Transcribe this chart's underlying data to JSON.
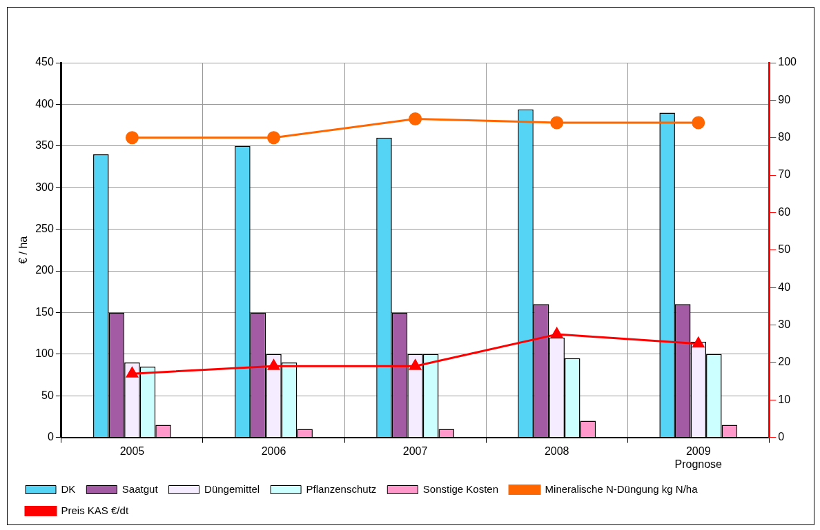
{
  "chart_data": {
    "type": "bar",
    "ylabel": "€ / ha",
    "categories": [
      "2005",
      "2006",
      "2007",
      "2008",
      "2009\nPrognose"
    ],
    "series": [
      {
        "name": "DK",
        "color": "#55d4f5",
        "values": [
          340,
          350,
          360,
          394,
          390
        ]
      },
      {
        "name": "Saatgut",
        "color": "#a35ca3",
        "values": [
          150,
          150,
          150,
          160,
          160
        ]
      },
      {
        "name": "Düngemittel",
        "color": "#f6ecff",
        "values": [
          90,
          100,
          100,
          120,
          115
        ]
      },
      {
        "name": "Pflanzenschutz",
        "color": "#ccffff",
        "values": [
          85,
          90,
          100,
          95,
          100
        ]
      },
      {
        "name": "Sonstige Kosten",
        "color": "#ff99cc",
        "values": [
          15,
          10,
          10,
          20,
          15
        ]
      },
      {
        "name": "Mineralische N-Düngung kg N/ha",
        "type": "line",
        "axis": "y2",
        "marker": "circle",
        "color": "#ff6600",
        "values": [
          80,
          80,
          85,
          84,
          84
        ]
      },
      {
        "name": "Preis KAS €/dt",
        "type": "line",
        "axis": "y2",
        "marker": "triangle",
        "color": "#ff0000",
        "values": [
          17,
          19,
          19,
          27.5,
          25
        ]
      }
    ],
    "ylim": [
      0,
      450
    ],
    "yticks": [
      0,
      50,
      100,
      150,
      200,
      250,
      300,
      350,
      400,
      450
    ],
    "y2lim": [
      0,
      100
    ],
    "y2ticks": [
      0,
      10,
      20,
      30,
      40,
      50,
      60,
      70,
      80,
      90,
      100
    ],
    "grid": true,
    "legend": "bottom",
    "line_style": "solid"
  }
}
